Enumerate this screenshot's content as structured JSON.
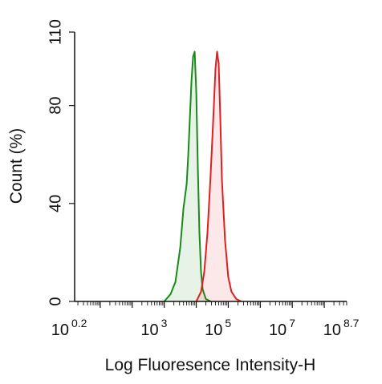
{
  "chart_data": {
    "type": "area",
    "xlabel": "Log Fluoresence Intensity-H",
    "ylabel": "Count  (%)",
    "x_scale": "log10",
    "xlim_exponent": [
      0.2,
      8.7
    ],
    "ylim": [
      0,
      110
    ],
    "x_ticks": [
      {
        "base": "10",
        "exp": "0.2"
      },
      {
        "base": "10",
        "exp": "3"
      },
      {
        "base": "10",
        "exp": "5"
      },
      {
        "base": "10",
        "exp": "7"
      },
      {
        "base": "10",
        "exp": "8.7"
      }
    ],
    "y_ticks": [
      "0",
      "40",
      "80",
      "110"
    ],
    "grid": false,
    "legend": "none",
    "series": [
      {
        "color": "#1a8a1a",
        "fill": "#1a8a1a",
        "x_exponent": [
          3.0,
          3.2,
          3.35,
          3.5,
          3.6,
          3.7,
          3.75,
          3.8,
          3.85,
          3.9,
          3.95,
          4.0,
          4.05,
          4.1,
          4.15,
          4.2,
          4.3,
          4.45
        ],
        "y": [
          0,
          3,
          8,
          22,
          38,
          48,
          60,
          75,
          90,
          100,
          102,
          85,
          55,
          28,
          12,
          5,
          1,
          0
        ]
      },
      {
        "color": "#e02020",
        "fill": "#e02020",
        "x_exponent": [
          4.0,
          4.15,
          4.25,
          4.35,
          4.45,
          4.55,
          4.6,
          4.65,
          4.7,
          4.75,
          4.8,
          4.9,
          5.0,
          5.1,
          5.25,
          5.4
        ],
        "y": [
          0,
          4,
          12,
          28,
          52,
          80,
          95,
          102,
          97,
          75,
          50,
          25,
          10,
          4,
          1,
          0
        ]
      }
    ]
  }
}
